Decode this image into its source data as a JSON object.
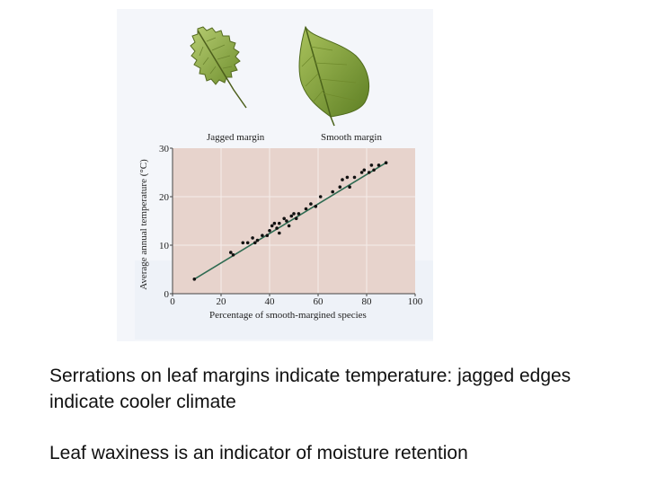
{
  "figure": {
    "leaf_labels": {
      "left": "Jagged margin",
      "right": "Smooth margin"
    }
  },
  "chart_data": {
    "type": "scatter",
    "xlabel": "Percentage of smooth-margined species",
    "ylabel": "Average annual temperature (°C)",
    "xlim": [
      0,
      100
    ],
    "ylim": [
      0,
      30
    ],
    "xticks": [
      0,
      20,
      40,
      60,
      80,
      100
    ],
    "yticks": [
      0,
      10,
      20,
      30
    ],
    "grid": true,
    "points": [
      [
        9,
        3.0
      ],
      [
        24,
        8.5
      ],
      [
        25,
        8.0
      ],
      [
        29,
        10.5
      ],
      [
        31,
        10.5
      ],
      [
        33,
        11.5
      ],
      [
        34,
        10.5
      ],
      [
        35,
        11.0
      ],
      [
        37,
        12.0
      ],
      [
        39,
        12.0
      ],
      [
        40,
        13.0
      ],
      [
        41,
        14.0
      ],
      [
        42,
        14.5
      ],
      [
        43,
        13.5
      ],
      [
        44,
        12.5
      ],
      [
        44,
        14.5
      ],
      [
        46,
        15.5
      ],
      [
        47,
        15.0
      ],
      [
        48,
        14.0
      ],
      [
        49,
        16.0
      ],
      [
        50,
        16.5
      ],
      [
        51,
        15.5
      ],
      [
        52,
        16.5
      ],
      [
        55,
        17.5
      ],
      [
        57,
        18.5
      ],
      [
        59,
        18.0
      ],
      [
        61,
        20.0
      ],
      [
        66,
        21.0
      ],
      [
        69,
        22.0
      ],
      [
        70,
        23.5
      ],
      [
        72,
        24.0
      ],
      [
        73,
        22.0
      ],
      [
        75,
        24.0
      ],
      [
        78,
        25.0
      ],
      [
        79,
        25.5
      ],
      [
        81,
        25.0
      ],
      [
        82,
        26.5
      ],
      [
        83,
        25.5
      ],
      [
        85,
        26.5
      ],
      [
        88,
        27.0
      ]
    ],
    "fit_line": {
      "x": [
        9,
        88
      ],
      "y": [
        3.0,
        27.0
      ]
    },
    "colors": {
      "points": "#111111",
      "fit_line": "#2f6b52",
      "plot_bg": "#e7d3cc"
    }
  },
  "caption": {
    "line1": "Serrations on leaf margins indicate temperature: jagged edges indicate cooler climate",
    "line2": "Leaf waxiness is an indicator of moisture retention"
  }
}
